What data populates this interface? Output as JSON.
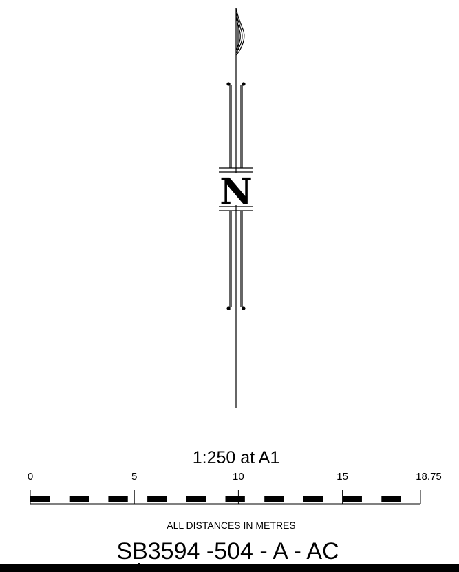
{
  "north_arrow": {
    "letter": "N"
  },
  "scale_bar": {
    "scale_text": "1:250 at A1",
    "ticks": [
      "0",
      "5",
      "10",
      "15",
      "18.75"
    ],
    "tick_values": [
      0,
      5,
      10,
      15,
      18.75
    ],
    "max_value": 18.75,
    "segments": 10,
    "note": "ALL DISTANCES IN METRES"
  },
  "drawing_ref": "SB3594 -504 - A - AC",
  "colors": {
    "ink": "#000000",
    "paper": "#ffffff"
  }
}
